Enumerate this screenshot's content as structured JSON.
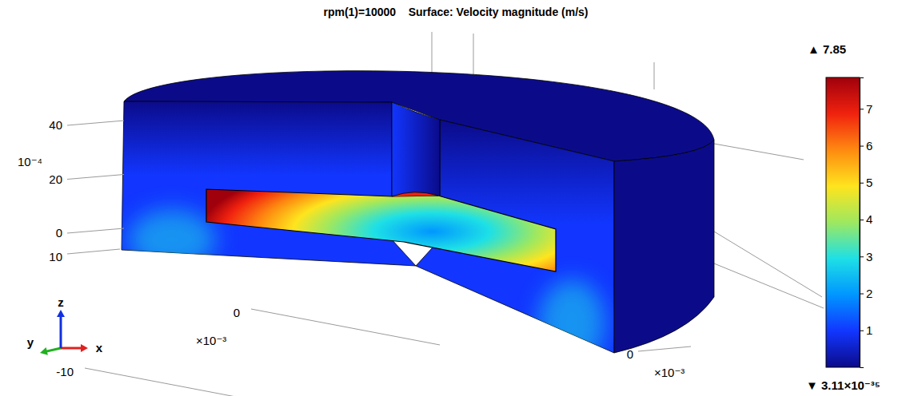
{
  "chart_data": {
    "type": "surface3d",
    "title": "rpm(1)=10000    Surface: Velocity magnitude (m/s)",
    "colorbar": {
      "range": [
        3.11e-35,
        7.85
      ],
      "ticks": [
        1,
        2,
        3,
        4,
        5,
        6,
        7
      ],
      "max": {
        "value": 7.85,
        "label": "▲ 7.85"
      },
      "min": {
        "value": 3.11e-35,
        "label": "▼ 3.11×10⁻³⁵"
      },
      "colors": [
        "#0b0b8a",
        "#1236ff",
        "#0096ff",
        "#1ee0e6",
        "#9ee860",
        "#ffe41e",
        "#ff8a10",
        "#f0220e",
        "#a0000c"
      ]
    },
    "z_axis": {
      "ticks": [
        0,
        20,
        40
      ],
      "multiplier": "10⁻⁴"
    },
    "y_axis": {
      "ticks": [
        0,
        -10
      ],
      "multiplier": "×10⁻³"
    },
    "x_axis": {
      "ticks": [
        10,
        0
      ],
      "multiplier": "×10⁻³"
    },
    "axis_labels": [
      "x",
      "y",
      "z"
    ]
  }
}
